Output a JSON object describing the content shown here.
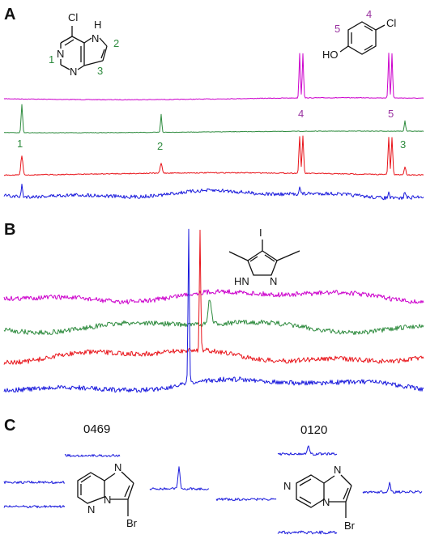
{
  "panels": [
    {
      "letter": "A"
    },
    {
      "letter": "B"
    },
    {
      "letter": "C"
    }
  ],
  "molecules": {
    "pyrrolopyrimidine": {
      "cl": "Cl",
      "n_top": "N",
      "n_bottom": "N",
      "nh": "H",
      "nh_n": "N",
      "pos1": "1",
      "pos2": "2",
      "pos3": "3"
    },
    "chlorophenol": {
      "cl": "Cl",
      "oh": "HO",
      "pos4": "4",
      "pos5": "5"
    },
    "iodopyrazole": {
      "i": "I",
      "hn": "HN",
      "n": "N"
    },
    "bromo_pyridazine": {
      "n_top": "N",
      "n_bottom": "N",
      "n_ring": "N",
      "br": "Br"
    },
    "bromo_pyrazine": {
      "n_top": "N",
      "n_bottom": "N",
      "n_ring": "N",
      "br": "Br"
    }
  },
  "peak_labels": {
    "green": [
      "1",
      "2",
      "3"
    ],
    "magenta": [
      "4",
      "5"
    ]
  },
  "compound_codes": [
    "0469",
    "0120"
  ],
  "colors": {
    "magenta": "#cc00cc",
    "green": "#2e8b3e",
    "red": "#e8141a",
    "blue": "#1a1adc",
    "grey": "#555555",
    "label_green": "#2e8b3e",
    "label_purple": "#9932a0",
    "text": "#111111"
  }
}
